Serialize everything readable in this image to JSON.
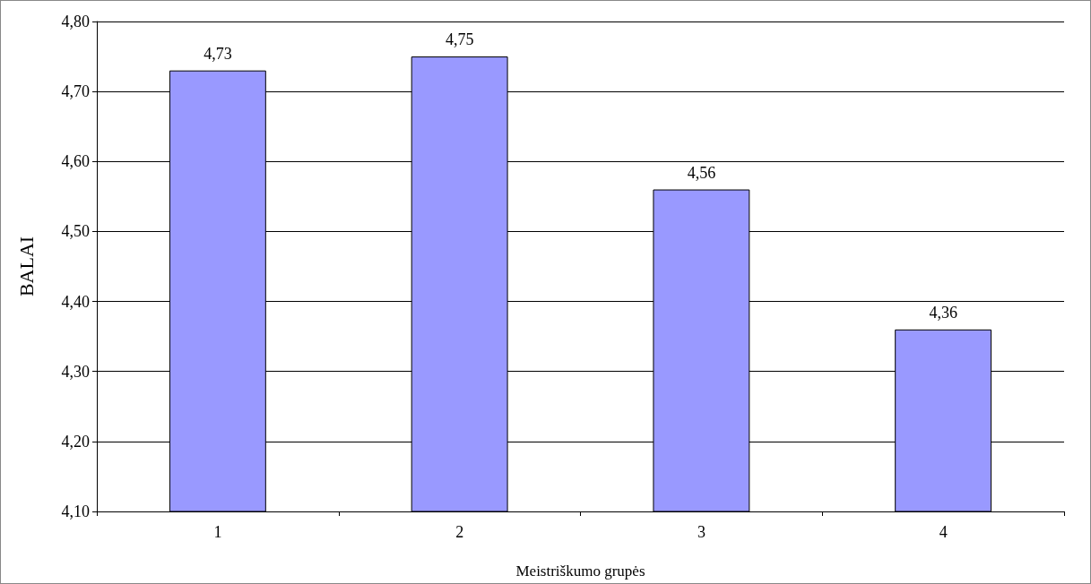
{
  "chart_data": {
    "type": "bar",
    "xlabel": "Meistriškumo grupės",
    "ylabel": "BALAI",
    "categories": [
      "1",
      "2",
      "3",
      "4"
    ],
    "values": [
      4.73,
      4.75,
      4.56,
      4.36
    ],
    "color": "#9999ff",
    "value_labels": [
      "4,73",
      "4,75",
      "4,56",
      "4,36"
    ],
    "ylim": [
      4.1,
      4.8
    ],
    "yticks": [
      {
        "value": 4.1,
        "label": "4,10"
      },
      {
        "value": 4.2,
        "label": "4,20"
      },
      {
        "value": 4.3,
        "label": "4,30"
      },
      {
        "value": 4.4,
        "label": "4,40"
      },
      {
        "value": 4.5,
        "label": "4,50"
      },
      {
        "value": 4.6,
        "label": "4,60"
      },
      {
        "value": 4.7,
        "label": "4,70"
      },
      {
        "value": 4.8,
        "label": "4,80"
      }
    ],
    "grid": "y"
  }
}
